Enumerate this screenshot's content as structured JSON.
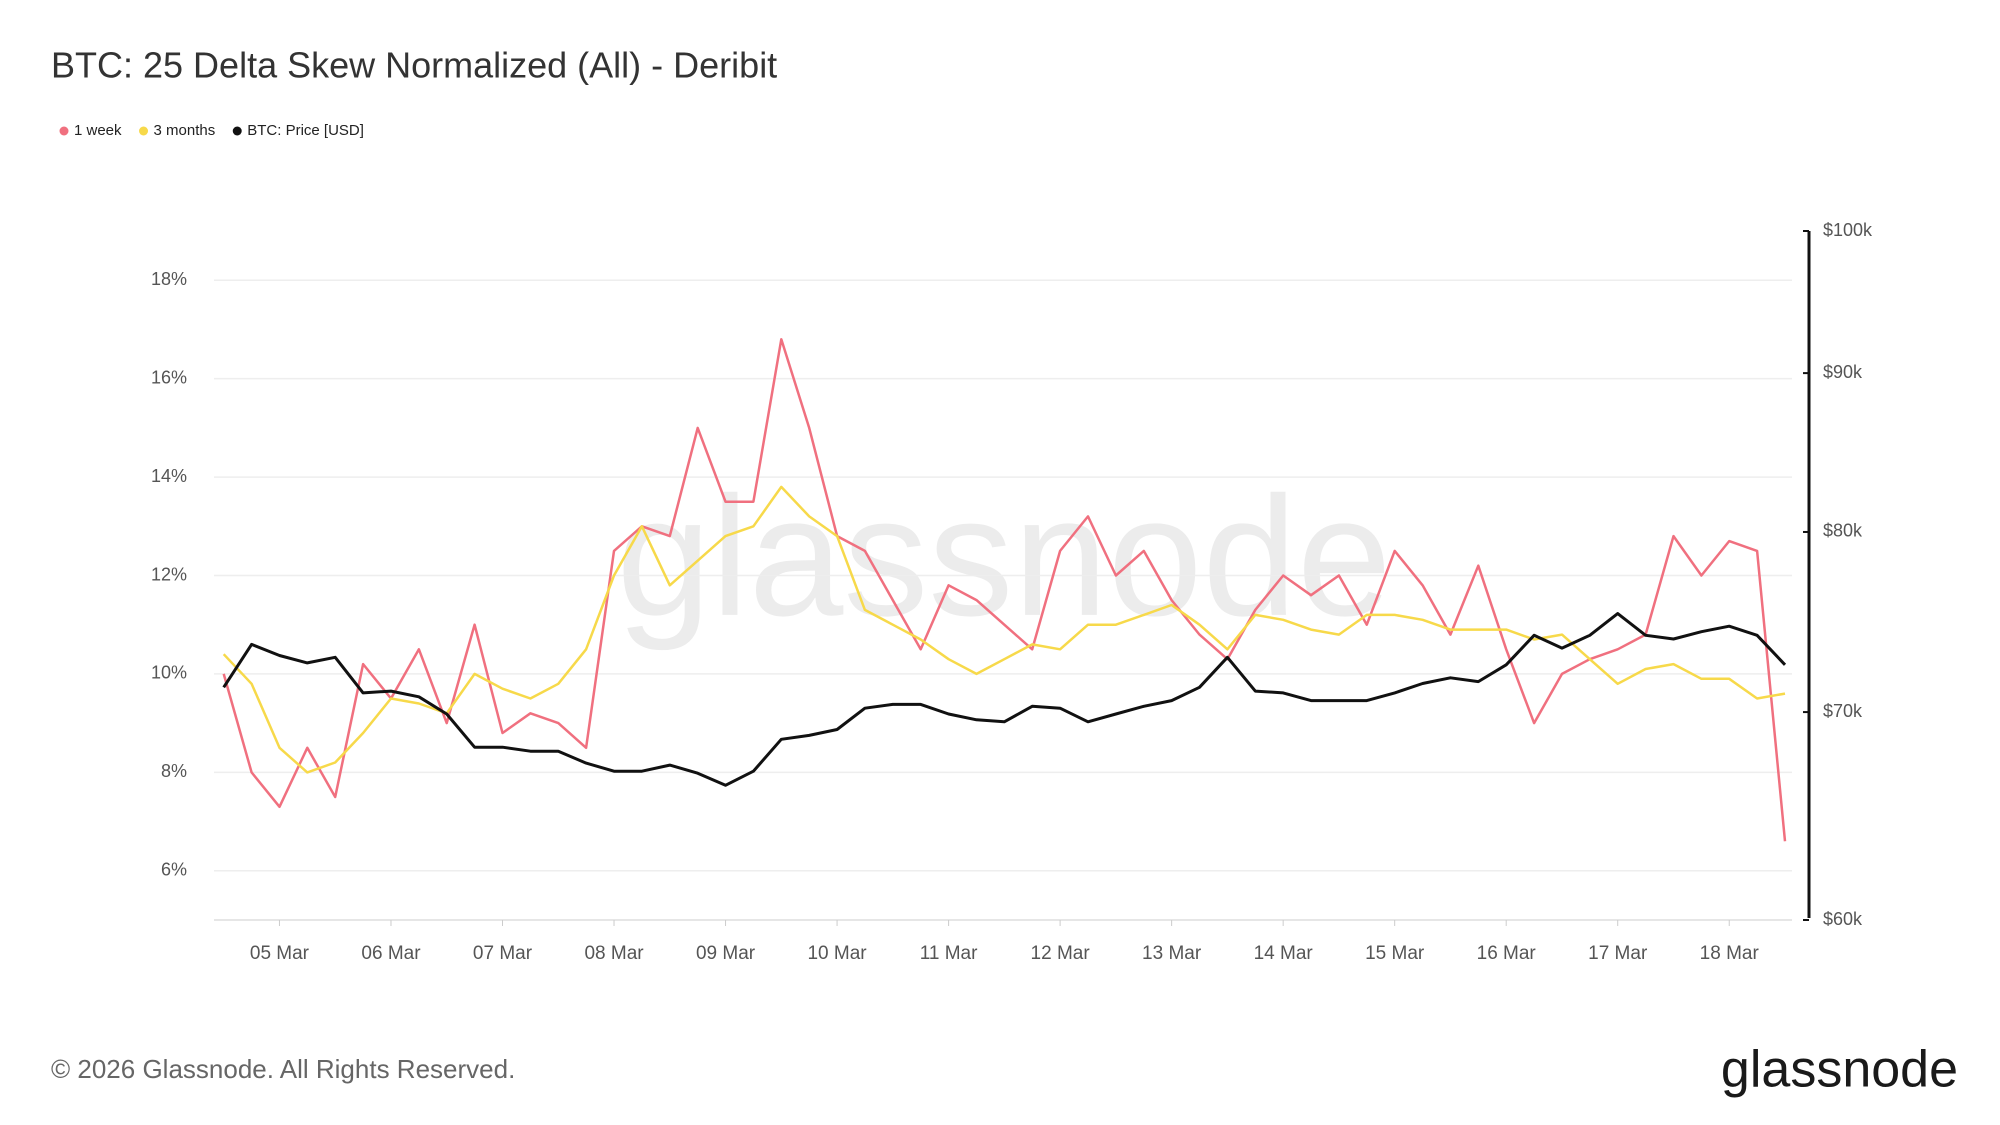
{
  "chart_data": {
    "type": "line",
    "title": "BTC: 25 Delta Skew Normalized (All) - Deribit",
    "categories": [
      null,
      null,
      "05 Mar",
      null,
      null,
      null,
      "06 Mar",
      null,
      null,
      null,
      "07 Mar",
      null,
      null,
      null,
      "08 Mar",
      null,
      null,
      null,
      "09 Mar",
      null,
      null,
      null,
      "10 Mar",
      null,
      null,
      null,
      "11 Mar",
      null,
      null,
      null,
      "12 Mar",
      null,
      null,
      null,
      "13 Mar",
      null,
      null,
      null,
      "14 Mar",
      null,
      null,
      null,
      "15 Mar",
      null,
      null,
      null,
      "16 Mar",
      null,
      null,
      null,
      "17 Mar",
      null,
      null,
      null,
      "18 Mar",
      null,
      null
    ],
    "series": [
      {
        "name": "1 week",
        "color": "#f0707f",
        "values": [
          10.0,
          8.0,
          7.3,
          8.5,
          7.5,
          10.2,
          9.5,
          10.5,
          9.0,
          11.0,
          8.8,
          9.2,
          9.0,
          8.5,
          12.5,
          13.0,
          12.8,
          15.0,
          13.5,
          13.5,
          16.8,
          15.0,
          12.8,
          12.5,
          11.5,
          10.5,
          11.8,
          11.5,
          11.0,
          10.5,
          12.5,
          13.2,
          12.0,
          12.5,
          11.5,
          10.8,
          10.3,
          11.3,
          12.0,
          11.6,
          12.0,
          11.0,
          12.5,
          11.8,
          10.8,
          12.2,
          10.5,
          9.0,
          10.0,
          10.3,
          10.5,
          10.8,
          12.8,
          12.0,
          12.7,
          12.5,
          6.6
        ]
      },
      {
        "name": "3 months",
        "color": "#f7d94a",
        "values": [
          10.4,
          9.8,
          8.5,
          8.0,
          8.2,
          8.8,
          9.5,
          9.4,
          9.2,
          10.0,
          9.7,
          9.5,
          9.8,
          10.5,
          12.0,
          13.0,
          11.8,
          12.3,
          12.8,
          13.0,
          13.8,
          13.2,
          12.8,
          11.3,
          11.0,
          10.7,
          10.3,
          10.0,
          10.3,
          10.6,
          10.5,
          11.0,
          11.0,
          11.2,
          11.4,
          11.0,
          10.5,
          11.2,
          11.1,
          10.9,
          10.8,
          11.2,
          11.2,
          11.1,
          10.9,
          10.9,
          10.9,
          10.7,
          10.8,
          10.3,
          9.8,
          10.1,
          10.2,
          9.9,
          9.9,
          9.5,
          9.6
        ]
      },
      {
        "name": "BTC: Price [USD]",
        "color": "#111111",
        "axis": "y2",
        "values": [
          71300,
          73600,
          73000,
          72600,
          72900,
          71000,
          71100,
          70800,
          69900,
          68200,
          68200,
          68000,
          68000,
          67400,
          67000,
          67000,
          67300,
          66900,
          66300,
          67000,
          68600,
          68800,
          69100,
          70200,
          70400,
          70400,
          69900,
          69600,
          69500,
          70300,
          70200,
          69500,
          69900,
          70300,
          70600,
          71300,
          72900,
          71100,
          71000,
          70600,
          70600,
          70600,
          71000,
          71500,
          71800,
          71600,
          72500,
          74100,
          73400,
          74100,
          75300,
          74100,
          73900,
          74300,
          74600,
          74100,
          72500
        ]
      }
    ],
    "ylim": [
      5,
      19
    ],
    "yticks": [
      {
        "value": 6,
        "label": "6%"
      },
      {
        "value": 8,
        "label": "8%"
      },
      {
        "value": 10,
        "label": "10%"
      },
      {
        "value": 12,
        "label": "12%"
      },
      {
        "value": 14,
        "label": "14%"
      },
      {
        "value": 16,
        "label": "16%"
      },
      {
        "value": 18,
        "label": "18%"
      }
    ],
    "y2lim": [
      60000,
      100000
    ],
    "y2scale": "log",
    "y2ticks": [
      {
        "value": 60000,
        "label": "$60k"
      },
      {
        "value": 70000,
        "label": "$70k"
      },
      {
        "value": 80000,
        "label": "$80k"
      },
      {
        "value": 90000,
        "label": "$90k"
      },
      {
        "value": 100000,
        "label": "$100k"
      }
    ],
    "grid": true,
    "legend": "top-left",
    "watermark": "glassnode",
    "footer": "© 2026 Glassnode. All Rights Reserved.",
    "logo": "glassnode"
  }
}
